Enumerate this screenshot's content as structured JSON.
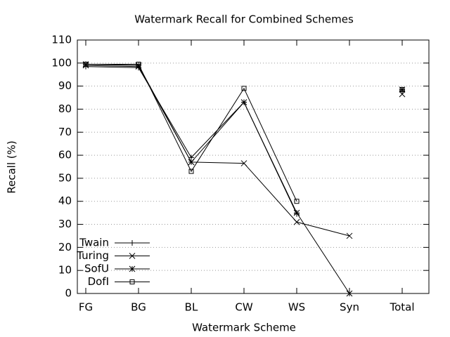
{
  "chart_data": {
    "type": "line",
    "title": "Watermark Recall for Combined Schemes",
    "xlabel": "Watermark Scheme",
    "ylabel": "Recall (%)",
    "categories": [
      "FG",
      "BG",
      "BL",
      "CW",
      "WS",
      "Syn",
      "Total"
    ],
    "series": [
      {
        "name": "Twain",
        "color": "#000000",
        "marker": "plus",
        "values": [
          98.5,
          98,
          59,
          83,
          34.5,
          null,
          88
        ]
      },
      {
        "name": "Turing",
        "color": "#000000",
        "marker": "x",
        "values": [
          99,
          98.5,
          57,
          56.5,
          31,
          25,
          86.5
        ]
      },
      {
        "name": "SofU",
        "color": "#000000",
        "marker": "star",
        "values": [
          99.5,
          99,
          57,
          83,
          35,
          0,
          88.5
        ]
      },
      {
        "name": "DofI",
        "color": "#000000",
        "marker": "square",
        "values": [
          99.5,
          99.5,
          53,
          89,
          40,
          null,
          88.5
        ]
      }
    ],
    "ylim": [
      0,
      110
    ],
    "yticks": [
      0,
      10,
      20,
      30,
      40,
      50,
      60,
      70,
      80,
      90,
      100,
      110
    ],
    "grid": true,
    "legend": "lower left"
  }
}
